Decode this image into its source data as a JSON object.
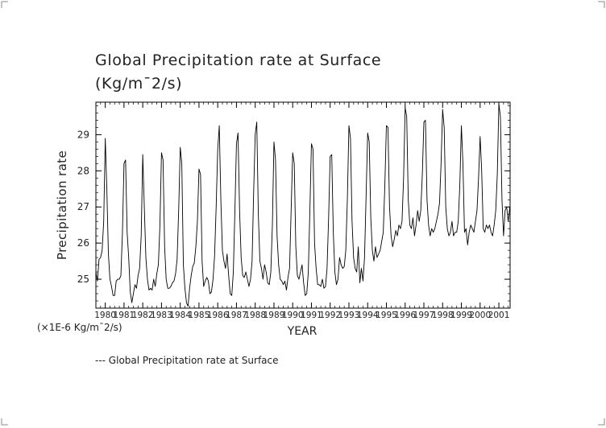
{
  "chart_data": {
    "type": "line",
    "title": "Global Precipitation rate at Surface",
    "title_units": "(Kg/m¯2/s)",
    "xlabel": "YEAR",
    "ylabel": "Precipitation rate",
    "scale_note": "(×1E-6 Kg/m¯2/s)",
    "legend": [
      "--- Global Precipitation rate at Surface"
    ],
    "xlim": [
      1979.5,
      2001.6
    ],
    "ylim": [
      24.2,
      29.9
    ],
    "y_ticks": [
      25,
      26,
      27,
      28,
      29
    ],
    "x_tick_labels": [
      "1980",
      "1981",
      "1982",
      "1983",
      "1984",
      "1985",
      "1986",
      "1987",
      "1988",
      "1989",
      "1990",
      "1991",
      "1992",
      "1993",
      "1994",
      "1995",
      "1996",
      "1997",
      "1998",
      "1999",
      "2000",
      "2001"
    ],
    "x_tick_values": [
      1980,
      1981,
      1982,
      1983,
      1984,
      1985,
      1986,
      1987,
      1988,
      1989,
      1990,
      1991,
      1992,
      1993,
      1994,
      1995,
      1996,
      1997,
      1998,
      1999,
      2000,
      2001
    ],
    "annual_peaks": [
      28.9,
      28.3,
      28.45,
      28.5,
      28.65,
      28.05,
      29.25,
      29.05,
      29.35,
      28.8,
      28.5,
      28.75,
      28.45,
      29.25,
      29.05,
      29.25,
      29.75,
      29.4,
      29.7,
      29.25,
      28.95,
      29.85
    ],
    "annual_minima": [
      24.55,
      24.6,
      24.7,
      24.75,
      24.75,
      24.75,
      24.6,
      24.8,
      24.85,
      24.7,
      24.55,
      24.65,
      24.8,
      24.9,
      24.95,
      25.55,
      26.1,
      26.15,
      26.15,
      26.1,
      26.2,
      26.2
    ],
    "series": [
      {
        "name": "Global Precipitation rate at Surface",
        "start": 1979.5,
        "step": 0.0833333,
        "values": [
          25.2,
          24.95,
          25.55,
          25.6,
          25.8,
          26.6,
          28.9,
          27.5,
          25.7,
          25.0,
          24.8,
          24.55,
          24.55,
          24.95,
          25.0,
          25.0,
          25.1,
          26.3,
          28.2,
          28.3,
          26.3,
          25.6,
          24.65,
          24.35,
          24.6,
          24.85,
          24.75,
          25.1,
          25.3,
          26.2,
          28.45,
          27.0,
          25.6,
          25.0,
          24.7,
          24.75,
          24.7,
          25.0,
          24.8,
          25.15,
          25.4,
          26.5,
          28.5,
          28.3,
          25.9,
          25.0,
          24.75,
          24.75,
          24.8,
          24.9,
          24.95,
          25.15,
          25.55,
          26.9,
          28.65,
          28.2,
          25.4,
          24.75,
          24.35,
          24.25,
          24.75,
          25.1,
          25.35,
          25.45,
          25.9,
          26.6,
          28.05,
          27.9,
          25.5,
          24.8,
          24.95,
          25.05,
          24.95,
          24.6,
          24.65,
          25.0,
          25.65,
          27.0,
          28.6,
          29.25,
          27.2,
          25.8,
          25.5,
          25.3,
          25.7,
          25.1,
          24.6,
          24.55,
          25.2,
          26.9,
          28.75,
          29.05,
          26.9,
          25.6,
          25.1,
          25.05,
          25.2,
          25.0,
          24.8,
          25.0,
          25.5,
          27.4,
          29.0,
          29.35,
          26.8,
          25.5,
          25.3,
          25.0,
          25.4,
          25.2,
          24.9,
          24.85,
          25.2,
          26.5,
          28.8,
          28.3,
          26.2,
          25.4,
          25.0,
          24.95,
          24.85,
          24.95,
          24.7,
          25.05,
          25.3,
          26.9,
          28.5,
          28.2,
          25.9,
          25.1,
          25.0,
          25.2,
          25.4,
          24.9,
          24.55,
          24.6,
          25.2,
          26.9,
          28.75,
          28.6,
          26.0,
          25.3,
          24.85,
          24.85,
          24.8,
          25.0,
          24.75,
          24.8,
          25.3,
          26.7,
          28.4,
          28.45,
          26.3,
          25.2,
          24.85,
          25.0,
          25.6,
          25.4,
          25.3,
          25.35,
          25.8,
          27.2,
          29.25,
          28.9,
          26.6,
          25.6,
          25.3,
          25.2,
          25.9,
          24.9,
          25.3,
          24.95,
          25.6,
          27.3,
          29.05,
          28.8,
          26.7,
          25.8,
          25.5,
          25.9,
          25.6,
          25.7,
          25.8,
          26.05,
          26.3,
          27.6,
          29.25,
          29.2,
          27.0,
          26.2,
          25.9,
          26.1,
          26.35,
          26.2,
          26.5,
          26.4,
          26.6,
          27.8,
          29.75,
          29.5,
          27.2,
          26.5,
          26.4,
          26.7,
          26.2,
          26.5,
          26.9,
          26.6,
          26.9,
          27.9,
          29.35,
          29.4,
          27.2,
          26.5,
          26.2,
          26.4,
          26.3,
          26.4,
          26.6,
          26.8,
          27.1,
          28.2,
          29.7,
          29.2,
          27.0,
          26.4,
          26.2,
          26.3,
          26.6,
          26.2,
          26.3,
          26.3,
          26.6,
          27.6,
          29.25,
          28.2,
          26.3,
          26.4,
          25.95,
          26.3,
          26.5,
          26.4,
          26.3,
          26.6,
          26.9,
          27.8,
          28.95,
          28.0,
          26.4,
          26.3,
          26.5,
          26.4,
          26.5,
          26.3,
          26.2,
          26.5,
          26.9,
          27.9,
          29.85,
          29.5,
          27.2,
          26.2,
          26.9,
          27.0,
          26.6,
          27.0
        ]
      }
    ]
  }
}
